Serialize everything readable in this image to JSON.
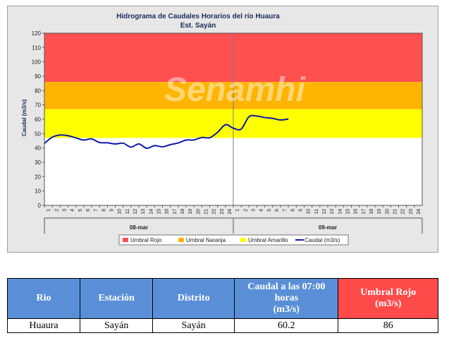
{
  "chart_data": {
    "type": "line",
    "title": "Hidrograma de Caudales Horarios del río Huaura",
    "subtitle": "Est. Sayán",
    "ylabel": "Caudal (m3/s)",
    "ylim": [
      0,
      120
    ],
    "yticks": [
      0,
      10,
      20,
      30,
      40,
      50,
      60,
      70,
      80,
      90,
      100,
      110,
      120
    ],
    "x_tick_labels": [
      "1",
      "2",
      "3",
      "4",
      "5",
      "6",
      "7",
      "8",
      "9",
      "10",
      "11",
      "12",
      "13",
      "14",
      "15",
      "16",
      "17",
      "18",
      "19",
      "20",
      "21",
      "22",
      "23",
      "24",
      "1",
      "2",
      "3",
      "4",
      "5",
      "6",
      "7",
      "8",
      "9",
      "10",
      "11",
      "12",
      "13",
      "14",
      "15",
      "16",
      "17",
      "18",
      "19",
      "20",
      "21",
      "22",
      "23",
      "24"
    ],
    "days": [
      "08-mar",
      "09-mar"
    ],
    "thresholds": [
      {
        "name": "Umbral Rojo",
        "from": 86,
        "to": 120,
        "color": "#ff5050"
      },
      {
        "name": "Umbral Naranja",
        "from": 67,
        "to": 86,
        "color": "#ffb400"
      },
      {
        "name": "Umbral Amarillo",
        "from": 47,
        "to": 67,
        "color": "#ffff00"
      }
    ],
    "series": [
      {
        "name": "Caudal (m3/s)",
        "color": "#0c1aa6",
        "hours": [
          0,
          1,
          2,
          3,
          4,
          5,
          6,
          7,
          8,
          9,
          10,
          11,
          12,
          13,
          14,
          15,
          16,
          17,
          18,
          19,
          20,
          21,
          22,
          23,
          24,
          25,
          26,
          27,
          28,
          29,
          30,
          31
        ],
        "values": [
          43.2,
          47.5,
          49,
          48.5,
          47,
          45.5,
          46.3,
          43.8,
          43.6,
          42.8,
          43.3,
          40.6,
          42.8,
          39.8,
          41.6,
          40.8,
          42.3,
          43.5,
          45.5,
          45.6,
          47.3,
          47.1,
          50.9,
          56.2,
          53.8,
          53.2,
          61.8,
          62.2,
          61.2,
          60.6,
          59.5,
          60.2
        ]
      }
    ],
    "legend": [
      "Umbral Rojo",
      "Umbral Naranja",
      "Umbral Amarillo",
      "Caudal (m3/s)"
    ],
    "legend_position": "bottom"
  },
  "watermark": "Senamhi",
  "table": {
    "headers": [
      "Rio",
      "Estación",
      "Distrito",
      "Caudal a las 07:00 horas",
      "(m3/s)",
      "Umbral Rojo",
      "(m3/s)"
    ],
    "row": [
      "Huaura",
      "Sayán",
      "Sayán",
      "60.2",
      "86"
    ]
  }
}
